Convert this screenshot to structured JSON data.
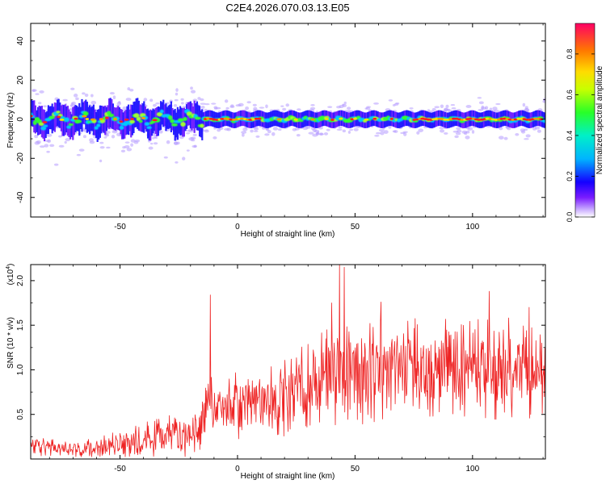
{
  "title": "C2E4.2026.070.03.13.E05",
  "colors": {
    "snr_line": "#ee2222",
    "axis": "#000000",
    "background": "#ffffff",
    "spectro_ridge": "#ff2020",
    "spectro_core": "#33ff33",
    "spectro_mid": "#00c8ff",
    "spectro_halo": "#1a10ff",
    "spectro_edge": "#b59bff"
  },
  "chart_data": [
    {
      "type": "heatmap",
      "title": "",
      "xlabel": "Height of straight line (km)",
      "ylabel": "Frequency (Hz)",
      "xlim": [
        -88,
        131
      ],
      "ylim": [
        -50,
        49
      ],
      "x_ticks": [
        -50,
        0,
        50,
        100
      ],
      "x_tick_labels": [
        "-50",
        "0",
        "50",
        "100"
      ],
      "y_ticks": [
        -40,
        -20,
        0,
        20,
        40
      ],
      "y_tick_labels": [
        "-40",
        "-20",
        "0",
        "20",
        "40"
      ],
      "colorbar": {
        "label": "Normalized spectral amplitude",
        "range": [
          0,
          0.95
        ],
        "ticks": [
          0,
          0.2,
          0.4,
          0.6,
          0.8
        ],
        "tick_labels": [
          "0.0",
          "0.2",
          "0.4",
          "0.6",
          "0.8"
        ],
        "colormap": "rainbow",
        "placement": "right"
      },
      "ridge_band_center_hz": 0,
      "ridge_band_halfwidth_hz": 4,
      "max_amplitude_segments_km": [
        [
          -14,
          10
        ],
        [
          75,
          130
        ]
      ]
    },
    {
      "type": "line",
      "title": "",
      "xlabel": "Height of straight line (km)",
      "ylabel": "SNR (10 * v/v)",
      "y_scale_label": "(x10",
      "y_scale_exp": "4",
      "y_scale_close": ")",
      "xlim": [
        -88,
        131
      ],
      "ylim": [
        0,
        21800
      ],
      "x_ticks": [
        -50,
        0,
        50,
        100
      ],
      "x_tick_labels": [
        "-50",
        "0",
        "50",
        "100"
      ],
      "y_ticks": [
        5000,
        10000,
        15000,
        20000
      ],
      "y_tick_labels": [
        "0.5",
        "1.0",
        "1.5",
        "2.0"
      ],
      "series": [
        {
          "name": "SNR",
          "envelope_x": [
            -88,
            -75,
            -60,
            -50,
            -40,
            -30,
            -20,
            -15,
            -13,
            -10,
            0,
            10,
            20,
            30,
            40,
            45,
            50,
            60,
            70,
            80,
            90,
            100,
            110,
            120,
            131
          ],
          "envelope_mean": [
            1600,
            1100,
            1300,
            1700,
            2200,
            2600,
            2700,
            4500,
            6500,
            5500,
            6000,
            6300,
            7000,
            8200,
            9500,
            9800,
            9600,
            9800,
            9900,
            10000,
            10000,
            10100,
            10100,
            10200,
            10200
          ],
          "envelope_amp": [
            1200,
            900,
            1100,
            1500,
            2000,
            2300,
            2600,
            3200,
            4000,
            3500,
            3800,
            4000,
            4500,
            5000,
            5800,
            6200,
            5800,
            5800,
            5800,
            5800,
            5800,
            5800,
            5800,
            5800,
            5800
          ],
          "peaks": [
            {
              "x": -11.5,
              "y": 18400
            },
            {
              "x": 43.5,
              "y": 21800
            },
            {
              "x": 45.5,
              "y": 21500
            },
            {
              "x": 40.0,
              "y": 17500
            },
            {
              "x": 107.0,
              "y": 18800
            },
            {
              "x": 61.0,
              "y": 17600
            },
            {
              "x": 124.0,
              "y": 17000
            }
          ]
        }
      ]
    }
  ]
}
